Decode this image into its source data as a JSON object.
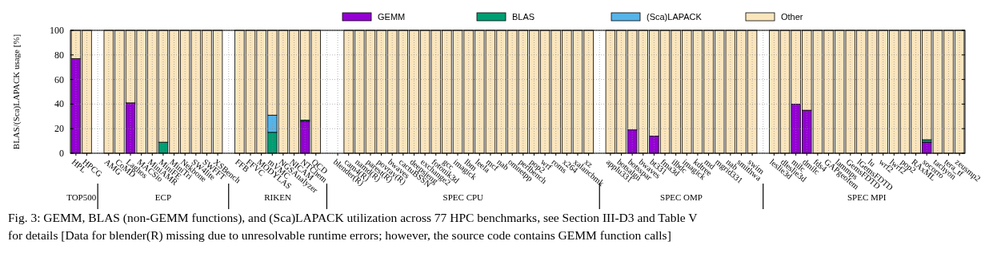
{
  "chart_data": {
    "type": "bar",
    "stacked": true,
    "ylabel": "BLAS/(Sca)LAPACK usage [%]",
    "ylim": [
      0,
      100
    ],
    "yticks": [
      0,
      20,
      40,
      60,
      80,
      100
    ],
    "grid": true,
    "legend": "top",
    "categories": [
      "HPL",
      "HPCG",
      null,
      "AMG",
      "CoMD",
      "Laghos",
      "MACSio",
      "MiniAMR",
      "MiniFE",
      "MiniTri",
      "Nekbone",
      "SW4lite",
      "SWFFT",
      "XSBench",
      null,
      "FFB",
      "FFVC",
      "MODYLAS",
      "mVMC",
      "NGSAnalyzer",
      "NICAM",
      "NTChem",
      "QCD",
      null,
      "blender(R)",
      "cam4(R)",
      "namd(R)",
      "parest(R)",
      "povray(R)",
      "bwaves",
      "cactuBSSN",
      "deepsjeng",
      "exchange2",
      "fotonik3d",
      "gcc",
      "imagick",
      "lbm",
      "leela",
      "mcf",
      "nab",
      "omnetpp",
      "perlbench",
      "pop2",
      "wrf",
      "roms",
      "x264",
      "xalancbmk",
      "xz",
      null,
      "applu331",
      "botsalgn",
      "botsspar",
      "bwaves",
      "bt331",
      "fma3d",
      "ilbdc",
      "imagick",
      "kdtree",
      "md",
      "mgrid331",
      "nab",
      "smithwa",
      "swim",
      null,
      "leslie3d",
      "dleslie3d",
      "milc",
      "dmilc",
      "fds4",
      "GAPgeofem",
      "lammps",
      "GemsFDTD",
      "lGemsFDTD",
      "lu",
      "wrf2",
      "lwrf2",
      "pop2",
      "RAxML",
      "socorro",
      "tachyon",
      "tera_tf",
      "zeusmp2"
    ],
    "series": [
      {
        "name": "GEMM",
        "color": "#9400d3",
        "values": [
          77,
          0,
          null,
          0,
          0,
          41,
          0,
          0,
          0,
          0,
          0,
          0,
          0,
          0,
          null,
          0,
          0,
          0,
          0,
          0,
          0,
          26,
          0,
          null,
          null,
          0,
          0,
          0,
          0,
          0,
          0,
          0,
          0,
          0,
          0,
          0,
          0,
          0,
          0,
          0,
          0,
          0,
          0,
          0,
          0,
          0,
          0,
          0,
          null,
          0,
          0,
          19,
          0,
          14,
          0,
          0,
          0,
          0,
          0,
          0,
          0,
          0,
          0,
          null,
          0,
          0,
          40,
          35,
          0,
          0,
          0,
          0,
          0,
          0,
          0,
          0,
          0,
          0,
          9,
          0,
          0,
          0
        ]
      },
      {
        "name": "BLAS",
        "color": "#009e73",
        "values": [
          0,
          0,
          null,
          0,
          0,
          0,
          0,
          0,
          9,
          0,
          0,
          0,
          0,
          0,
          null,
          0,
          0,
          0,
          17,
          0,
          0,
          1,
          0,
          null,
          null,
          0,
          0,
          0,
          0,
          0,
          0,
          0,
          0,
          0,
          0,
          0,
          0,
          0,
          0,
          0,
          0,
          0,
          0,
          0,
          0,
          0,
          0,
          0,
          null,
          0,
          0,
          0,
          0,
          0,
          0,
          0,
          0,
          0,
          0,
          0,
          0,
          0,
          0,
          null,
          0,
          0,
          0,
          0,
          0,
          0,
          0,
          0,
          0,
          0,
          0,
          0,
          0,
          0,
          2,
          0,
          0,
          0
        ]
      },
      {
        "name": "(Sca)LAPACK",
        "color": "#56b4e9",
        "values": [
          0,
          0,
          null,
          0,
          0,
          0,
          0,
          0,
          0,
          0,
          0,
          0,
          0,
          0,
          null,
          0,
          0,
          0,
          14,
          0,
          0,
          0,
          0,
          null,
          null,
          0,
          0,
          0,
          0,
          0,
          0,
          0,
          0,
          0,
          0,
          0,
          0,
          0,
          0,
          0,
          0,
          0,
          0,
          0,
          0,
          0,
          0,
          0,
          null,
          0,
          0,
          0,
          0,
          0,
          0,
          0,
          0,
          0,
          0,
          0,
          0,
          0,
          0,
          null,
          0,
          0,
          0,
          0,
          0,
          0,
          0,
          0,
          0,
          0,
          0,
          0,
          0,
          0,
          0,
          0,
          0,
          0
        ]
      },
      {
        "name": "Other",
        "color": "#fae5bd",
        "values": [
          23,
          100,
          null,
          100,
          100,
          59,
          100,
          100,
          91,
          100,
          100,
          100,
          100,
          100,
          null,
          100,
          100,
          100,
          69,
          100,
          100,
          73,
          100,
          null,
          null,
          100,
          100,
          100,
          100,
          100,
          100,
          100,
          100,
          100,
          100,
          100,
          100,
          100,
          100,
          100,
          100,
          100,
          100,
          100,
          100,
          100,
          100,
          100,
          null,
          100,
          100,
          81,
          100,
          86,
          100,
          100,
          100,
          100,
          100,
          100,
          100,
          100,
          100,
          null,
          100,
          100,
          60,
          65,
          100,
          100,
          100,
          100,
          100,
          100,
          100,
          100,
          100,
          100,
          89,
          100,
          100,
          100
        ]
      }
    ],
    "annotations": [
      "TOP500",
      "ECP",
      "RIKEN",
      "SPEC CPU",
      "SPEC OMP",
      "SPEC MPI",
      "Fig. 3: GEMM, BLAS (non-GEMM functions), and (Sca)LAPACK utilization across 77 HPC benchmarks, see Section III-D3 and Table V",
      "for details [Data for blender(R) missing due to unresolvable runtime errors; however, the source code contains GEMM function calls]"
    ]
  }
}
